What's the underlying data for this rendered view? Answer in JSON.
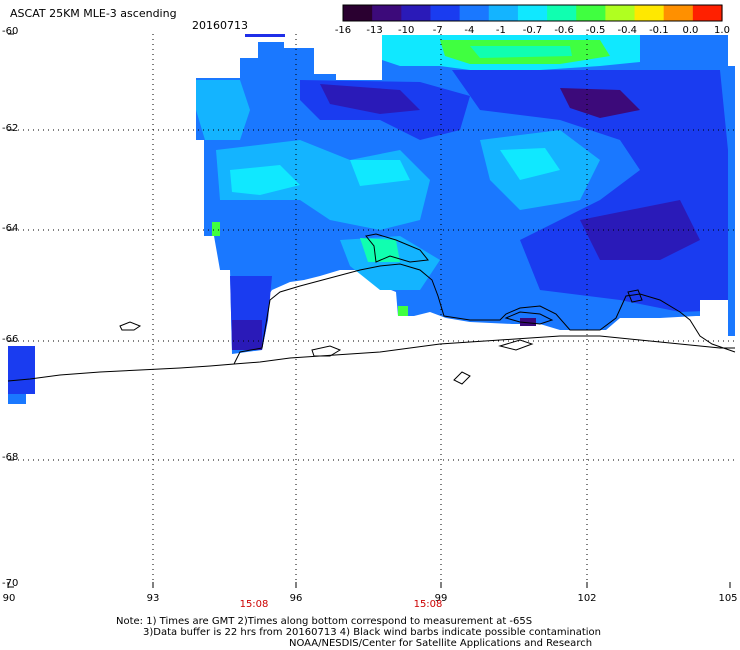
{
  "header": {
    "title": "ASCAT 25KM MLE-3 ascending",
    "date": "20160713"
  },
  "colorbar": {
    "ticks": [
      "-16",
      "-13",
      "-10",
      "-7",
      "-4",
      "-1",
      "-0.7",
      "-0.6",
      "-0.5",
      "-0.4",
      "-0.1",
      "0.0",
      "1.0"
    ],
    "colors": [
      "#2a0030",
      "#3c0a7a",
      "#2a1ab8",
      "#1a3cf0",
      "#1a78ff",
      "#14b4ff",
      "#10e8ff",
      "#10ffb0",
      "#40ff40",
      "#b0ff20",
      "#ffe800",
      "#ff9000",
      "#ff2000"
    ]
  },
  "axes": {
    "lat_labels": [
      "-60",
      "-62",
      "-64",
      "-66",
      "-68",
      "-70"
    ],
    "lon_labels": [
      "90",
      "93",
      "96",
      "99",
      "102",
      "105"
    ],
    "times": [
      "15:08",
      "15:08"
    ]
  },
  "notes": {
    "line1": "Note: 1) Times are GMT 2)Times along bottom correspond to measurement at -65S",
    "line2": "3)Data buffer is 22 hrs from 20160713 4) Black wind barbs indicate possible contamination",
    "line3": "NOAA/NESDIS/Center for Satellite Applications and Research"
  }
}
